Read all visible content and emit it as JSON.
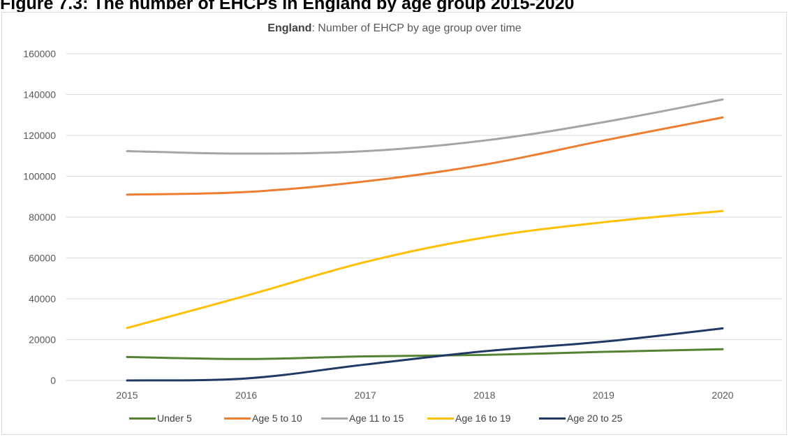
{
  "caption": "Figure 7.3: The number of EHCPs in England by age group 2015-2020",
  "chart_data": {
    "type": "line",
    "title_bold": "England",
    "title_rest": ": Number of EHCP by age group over time",
    "x": [
      "2015",
      "2016",
      "2017",
      "2018",
      "2019",
      "2020"
    ],
    "ylim": [
      0,
      160000
    ],
    "yticks": [
      "0",
      "20000",
      "40000",
      "60000",
      "80000",
      "100000",
      "120000",
      "140000",
      "160000"
    ],
    "grid": true,
    "legend_position": "bottom",
    "series": [
      {
        "name": "Under 5",
        "color": "#548235",
        "values": [
          11500,
          10500,
          11800,
          12500,
          14000,
          15300
        ]
      },
      {
        "name": "Age 5 to 10",
        "color": "#ed7d31",
        "values": [
          91000,
          92300,
          97500,
          105700,
          117500,
          128800
        ]
      },
      {
        "name": "Age 11 to 15",
        "color": "#a5a5a5",
        "values": [
          112300,
          111100,
          112300,
          117500,
          126500,
          137600
        ]
      },
      {
        "name": "Age 16 to 19",
        "color": "#ffc000",
        "values": [
          25700,
          41500,
          58000,
          70000,
          77500,
          83000
        ]
      },
      {
        "name": "Age 20 to 25",
        "color": "#203864",
        "values": [
          0,
          1000,
          7800,
          14300,
          19000,
          25500
        ]
      }
    ]
  }
}
